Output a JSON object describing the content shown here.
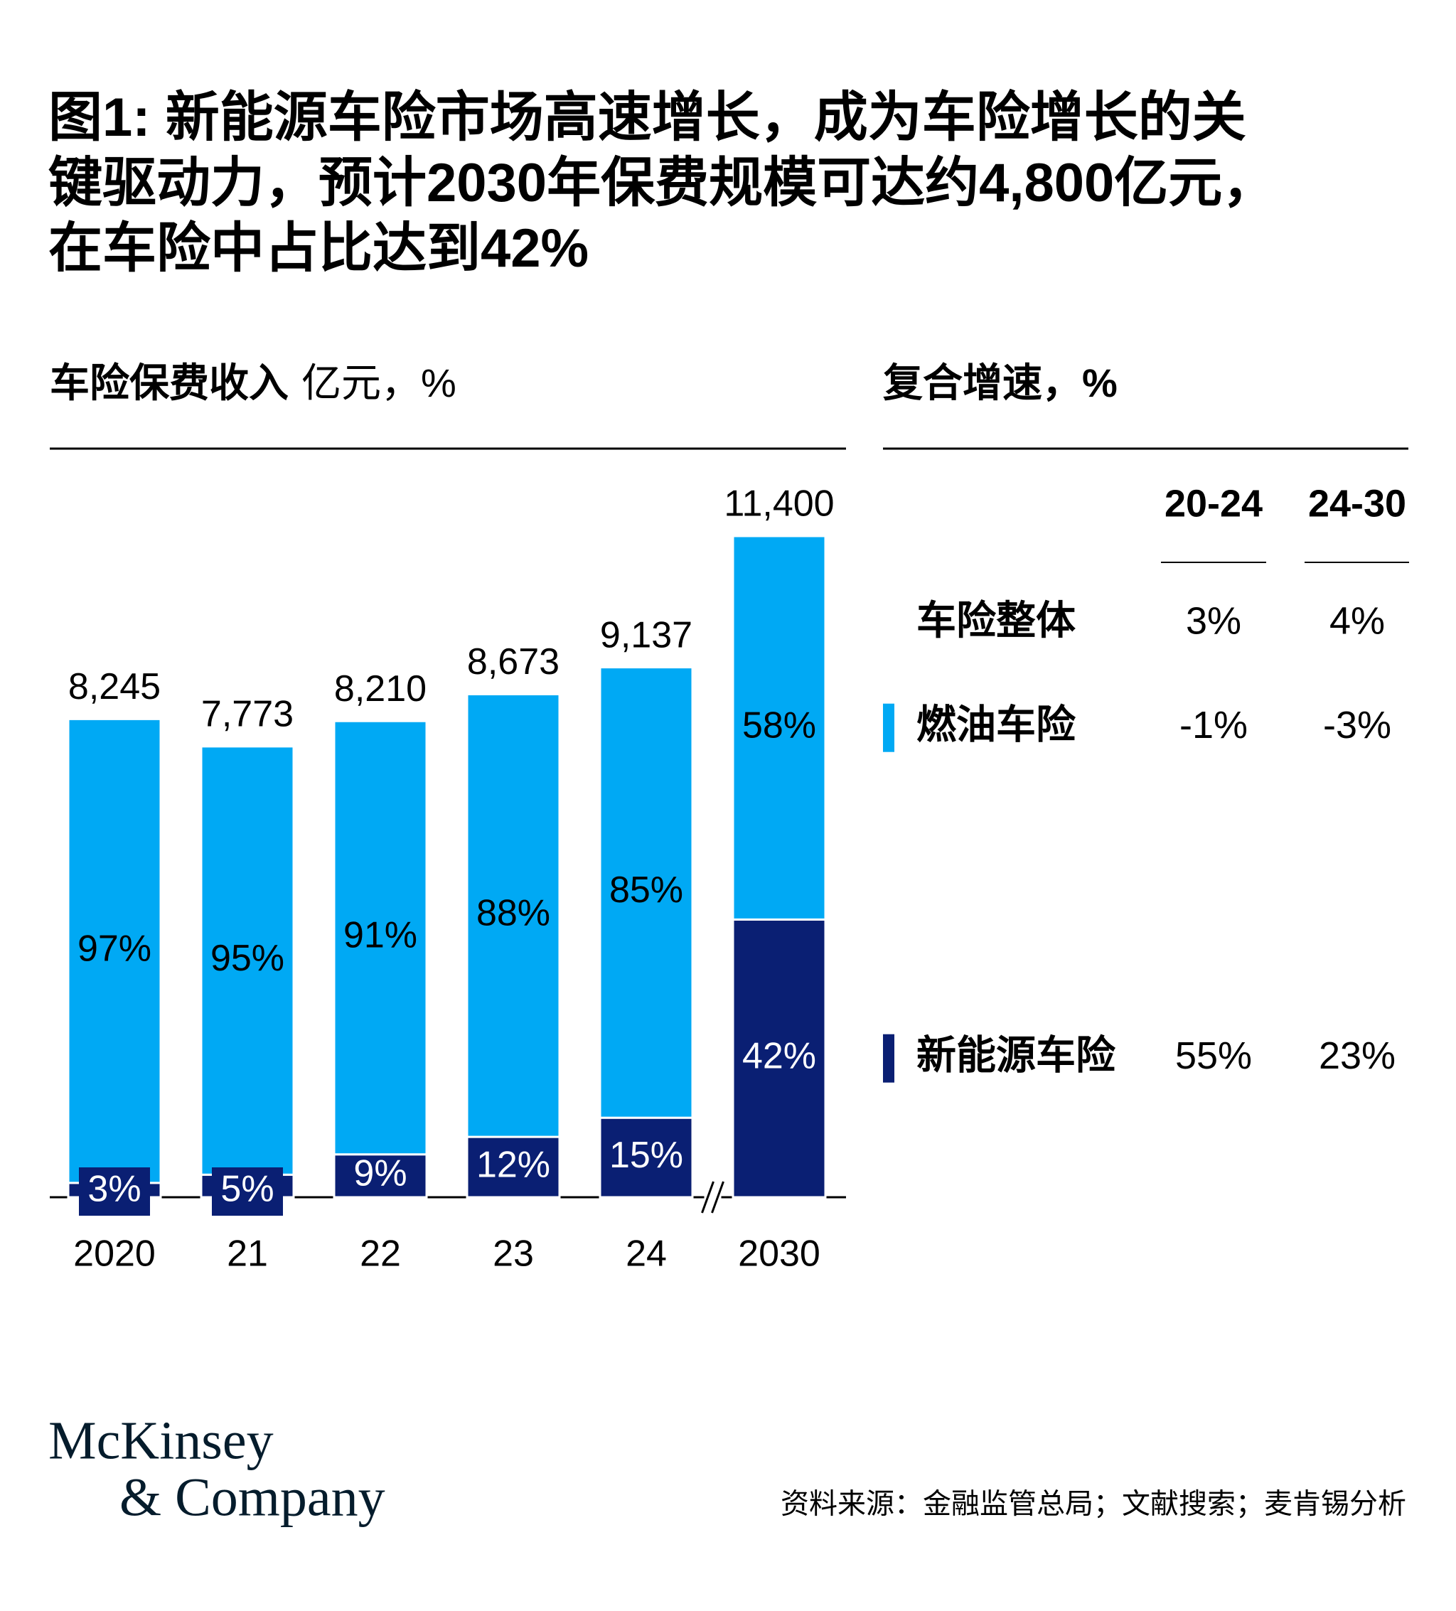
{
  "title": [
    "图1: 新能源车险市场高速增长，成为车险增长的关",
    "键驱动力，预计2030年保费规模可达约4,800亿元，",
    "在车险中占比达到42%"
  ],
  "chart_data": {
    "type": "stacked_bar",
    "title": "车险保费收入",
    "unit": "亿元，%",
    "categories": [
      "2020",
      "21",
      "22",
      "23",
      "24",
      "2030"
    ],
    "totals": {
      "values": [
        8245,
        7773,
        8210,
        8673,
        9137,
        11400
      ],
      "value_labels": [
        "8,245",
        "7,773",
        "8,210",
        "8,673",
        "9,137",
        "11,400"
      ]
    },
    "series": [
      {
        "name": "燃油车险",
        "color": "#00a9f4",
        "values": [
          97,
          95,
          91,
          88,
          85,
          58
        ],
        "value_labels": [
          "97%",
          "95%",
          "91%",
          "88%",
          "85%",
          "58%"
        ],
        "cagr": [
          "-1%",
          "-3%"
        ]
      },
      {
        "name": "新能源车险",
        "color": "#0a1f73",
        "values": [
          3,
          5,
          9,
          12,
          15,
          42
        ],
        "value_labels": [
          "3%",
          "5%",
          "9%",
          "12%",
          "15%",
          "42%"
        ],
        "cagr": [
          "55%",
          "23%"
        ]
      }
    ]
  },
  "cagr_table": {
    "title": "复合增速，%",
    "columns": [
      "20-24",
      "24-30"
    ],
    "overall": {
      "label": "车险整体",
      "cells": [
        "3%",
        "4%"
      ]
    }
  },
  "logo": [
    "McKinsey",
    "& Company"
  ],
  "source": "资料来源：金融监管总局；文献搜索；麦肯锡分析"
}
